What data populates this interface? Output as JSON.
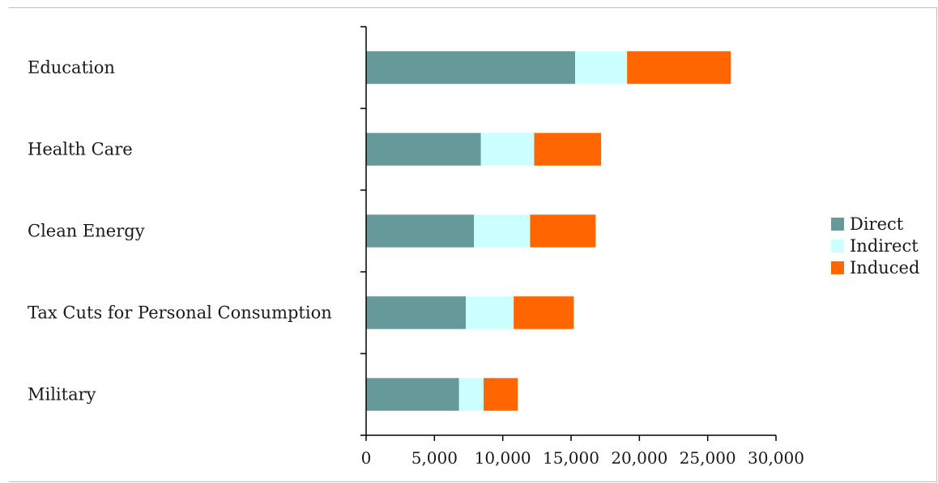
{
  "chart_data": {
    "type": "bar",
    "orientation": "horizontal",
    "stacked": true,
    "title": "",
    "xlabel": "",
    "ylabel": "",
    "categories": [
      "Education",
      "Health Care",
      "Clean Energy",
      "Tax Cuts for Personal Consumption",
      "Military"
    ],
    "series": [
      {
        "name": "Direct",
        "color": "#669999",
        "values": [
          15300,
          8400,
          7900,
          7300,
          6800
        ]
      },
      {
        "name": "Indirect",
        "color": "#ccffff",
        "values": [
          3800,
          3900,
          4100,
          3500,
          1800
        ]
      },
      {
        "name": "Induced",
        "color": "#ff6600",
        "values": [
          7600,
          4900,
          4800,
          4400,
          2500
        ]
      }
    ],
    "xlim": [
      0,
      30000
    ],
    "xticks": [
      0,
      5000,
      10000,
      15000,
      20000,
      25000,
      30000
    ],
    "xtick_labels": [
      "0",
      "5,000",
      "10,000",
      "15,000",
      "20,000",
      "25,000",
      "30,000"
    ],
    "grid": false,
    "legend_position": "right"
  }
}
